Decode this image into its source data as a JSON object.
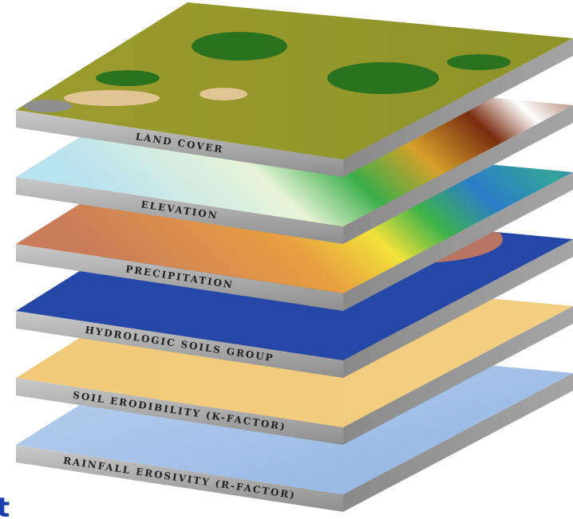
{
  "layers": [
    {
      "label": "LAND COVER"
    },
    {
      "label": "ELEVATION"
    },
    {
      "label": "PRECIPITATION"
    },
    {
      "label": "HYDROLOGIC SOILS GROUP"
    },
    {
      "label": "SOIL ERODIBILITY (K-FACTOR)"
    },
    {
      "label": "RAINFALL EROSIVITY (R-FACTOR)"
    }
  ],
  "fragment": "t"
}
